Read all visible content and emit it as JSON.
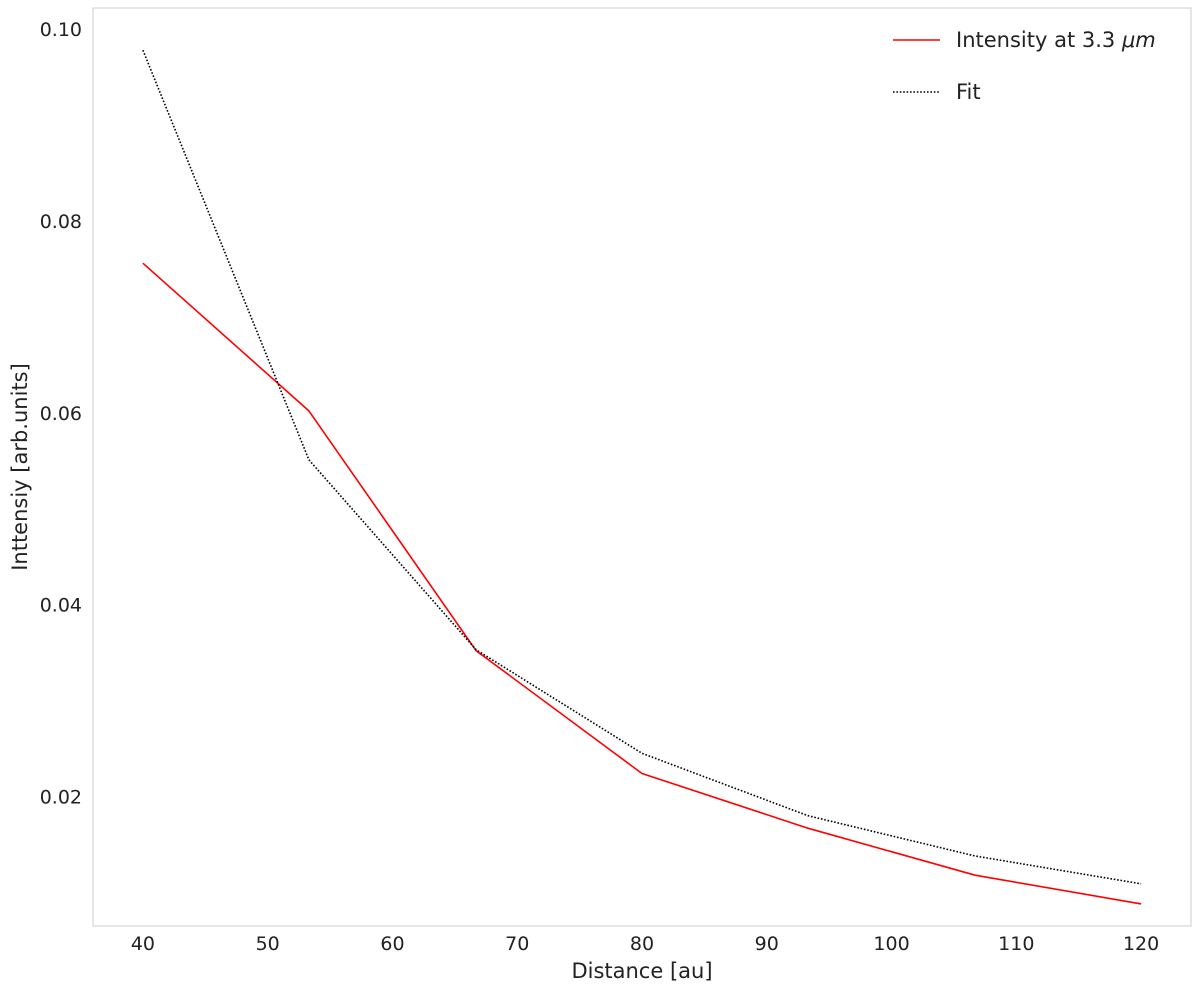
{
  "chart_data": {
    "type": "line",
    "title": "",
    "xlabel": "Distance [au]",
    "ylabel": "Inttensiy [arb.units]",
    "xlim": [
      36,
      124
    ],
    "ylim": [
      0.0065,
      0.1022
    ],
    "xticks": [
      40,
      50,
      60,
      70,
      80,
      90,
      100,
      110,
      120
    ],
    "yticks": [
      0.02,
      0.04,
      0.06,
      0.08,
      0.1
    ],
    "xtick_labels": [
      "40",
      "50",
      "60",
      "70",
      "80",
      "90",
      "100",
      "110",
      "120"
    ],
    "ytick_labels": [
      "0.02",
      "0.04",
      "0.06",
      "0.08",
      "0.10"
    ],
    "grid": false,
    "legend_position": "top-right",
    "series": [
      {
        "name": "Intensity at 3.3 μm",
        "legend_prefix": "Intensity at 3.3 ",
        "legend_math": "μm",
        "color": "#ff0000",
        "style": "solid",
        "x": [
          40,
          53.3,
          66.7,
          80,
          93.3,
          106.7,
          120
        ],
        "y": [
          0.0756,
          0.0602,
          0.0352,
          0.0224,
          0.0167,
          0.0118,
          0.0088
        ]
      },
      {
        "name": "Fit",
        "legend_prefix": "Fit",
        "legend_math": "",
        "color": "#000000",
        "style": "dotted",
        "x": [
          40,
          53.3,
          66.7,
          80,
          93.3,
          106.7,
          120
        ],
        "y": [
          0.0978,
          0.0551,
          0.0353,
          0.0245,
          0.018,
          0.0138,
          0.0109
        ]
      }
    ]
  }
}
